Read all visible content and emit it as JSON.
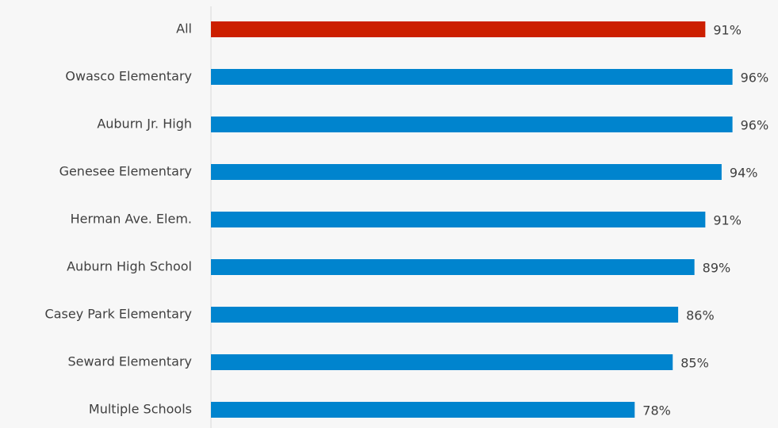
{
  "chart_data": {
    "type": "hbar",
    "categories": [
      "All",
      "Owasco Elementary",
      "Auburn Jr. High",
      "Genesee Elementary",
      "Herman Ave. Elem.",
      "Auburn High School",
      "Casey Park Elementary",
      "Seward Elementary",
      "Multiple Schools"
    ],
    "values": [
      91,
      96,
      96,
      94,
      91,
      89,
      86,
      85,
      78
    ],
    "value_labels": [
      "91%",
      "96%",
      "96%",
      "94%",
      "91%",
      "89%",
      "86%",
      "85%",
      "78%"
    ],
    "colors": [
      "#cc1f00",
      "#0084ce",
      "#0084ce",
      "#0084ce",
      "#0084ce",
      "#0084ce",
      "#0084ce",
      "#0084ce",
      "#0084ce"
    ],
    "xlim": [
      0,
      100
    ]
  }
}
